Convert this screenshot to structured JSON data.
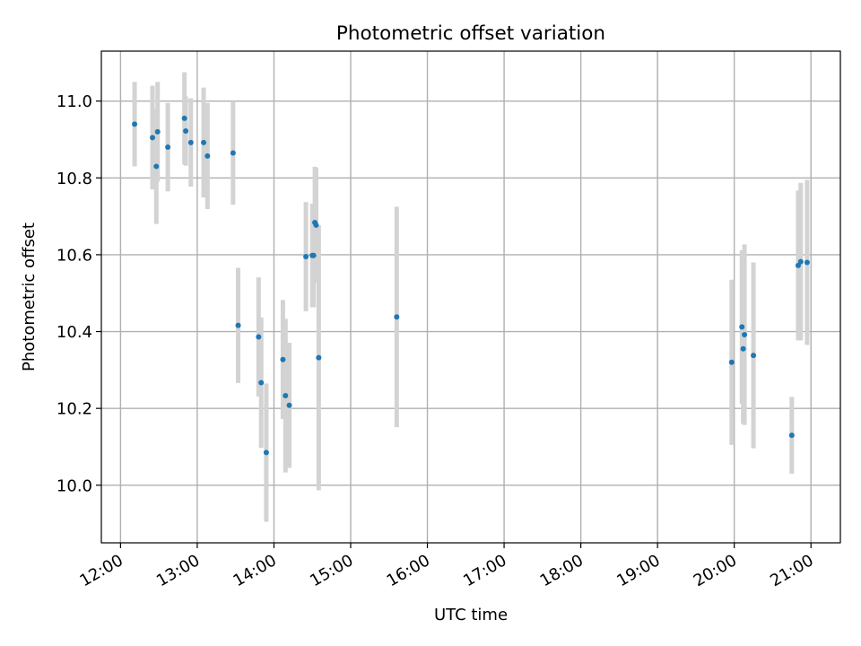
{
  "chart_data": {
    "type": "scatter",
    "title": "Photometric offset variation",
    "xlabel": "UTC time",
    "ylabel": "Photometric offset",
    "x_is_time": true,
    "x_ticks": [
      "12:00",
      "13:00",
      "14:00",
      "15:00",
      "16:00",
      "17:00",
      "18:00",
      "19:00",
      "20:00",
      "21:00"
    ],
    "y_ticks": [
      "10.0",
      "10.2",
      "10.4",
      "10.6",
      "10.8",
      "11.0"
    ],
    "xlim": [
      "11:45",
      "21:23"
    ],
    "ylim": [
      9.85,
      11.13
    ],
    "grid": true,
    "marker_color": "#1f77b4",
    "errorbar_color": "#d3d3d3",
    "points": [
      {
        "x": "12:11",
        "y": 10.94,
        "err": 0.11
      },
      {
        "x": "12:25",
        "y": 10.905,
        "err": 0.135
      },
      {
        "x": "12:28",
        "y": 10.83,
        "err": 0.15
      },
      {
        "x": "12:29",
        "y": 10.92,
        "err": 0.13
      },
      {
        "x": "12:37",
        "y": 10.88,
        "err": 0.115
      },
      {
        "x": "12:50",
        "y": 10.955,
        "err": 0.12
      },
      {
        "x": "12:51",
        "y": 10.922,
        "err": 0.09
      },
      {
        "x": "12:55",
        "y": 10.892,
        "err": 0.115
      },
      {
        "x": "13:05",
        "y": 10.892,
        "err": 0.143
      },
      {
        "x": "13:08",
        "y": 10.857,
        "err": 0.138
      },
      {
        "x": "13:28",
        "y": 10.865,
        "err": 0.135
      },
      {
        "x": "13:32",
        "y": 10.416,
        "err": 0.15
      },
      {
        "x": "13:48",
        "y": 10.386,
        "err": 0.155
      },
      {
        "x": "13:50",
        "y": 10.267,
        "err": 0.17
      },
      {
        "x": "13:54",
        "y": 10.085,
        "err": 0.18
      },
      {
        "x": "14:07",
        "y": 10.327,
        "err": 0.155
      },
      {
        "x": "14:09",
        "y": 10.233,
        "err": 0.2
      },
      {
        "x": "14:12",
        "y": 10.208,
        "err": 0.163
      },
      {
        "x": "14:25",
        "y": 10.595,
        "err": 0.142
      },
      {
        "x": "14:30",
        "y": 10.598,
        "err": 0.135
      },
      {
        "x": "14:31",
        "y": 10.598,
        "err": 0.135
      },
      {
        "x": "14:32",
        "y": 10.684,
        "err": 0.145
      },
      {
        "x": "14:33",
        "y": 10.677,
        "err": 0.15
      },
      {
        "x": "14:35",
        "y": 10.332,
        "err": 0.345
      },
      {
        "x": "15:36",
        "y": 10.438,
        "err": 0.287
      },
      {
        "x": "19:58",
        "y": 10.32,
        "err": 0.215
      },
      {
        "x": "20:06",
        "y": 10.412,
        "err": 0.2
      },
      {
        "x": "20:07",
        "y": 10.355,
        "err": 0.195
      },
      {
        "x": "20:08",
        "y": 10.392,
        "err": 0.235
      },
      {
        "x": "20:15",
        "y": 10.338,
        "err": 0.242
      },
      {
        "x": "20:45",
        "y": 10.13,
        "err": 0.1
      },
      {
        "x": "20:50",
        "y": 10.572,
        "err": 0.195
      },
      {
        "x": "20:52",
        "y": 10.582,
        "err": 0.205
      },
      {
        "x": "20:57",
        "y": 10.58,
        "err": 0.215
      }
    ]
  }
}
